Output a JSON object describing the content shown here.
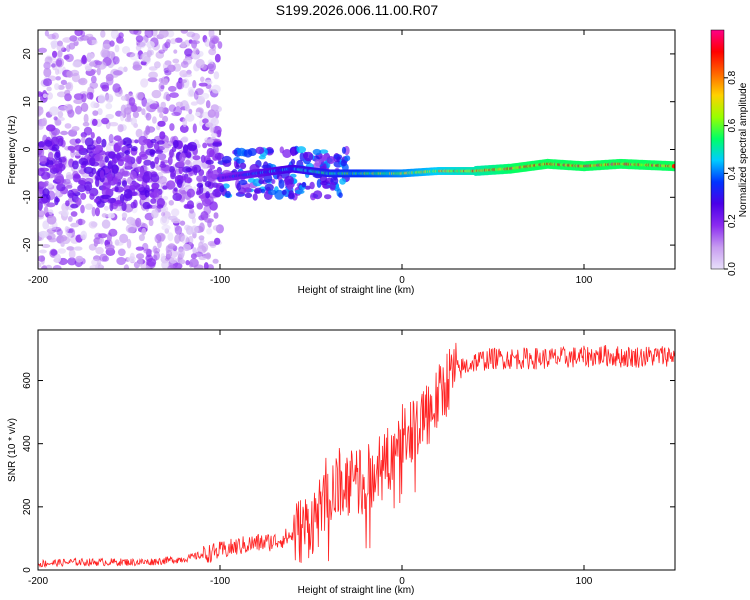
{
  "title": "S199.2026.006.11.00.R07",
  "chart_data": [
    {
      "type": "heatmap",
      "name": "spectrogram",
      "xlabel": "Height of straight line (km)",
      "ylabel": "Frequency (Hz)",
      "xlim": [
        -200,
        150
      ],
      "ylim": [
        -25,
        25
      ],
      "xticks": [
        -200,
        -100,
        0,
        100
      ],
      "yticks": [
        -20,
        -10,
        0,
        10,
        20
      ],
      "colorbar": {
        "label": "Normalized spectral amplitude",
        "range": [
          0,
          1
        ],
        "ticks": [
          0.0,
          0.2,
          0.4,
          0.6,
          0.8
        ],
        "stops": [
          "#e8e0fa",
          "#c79cf0",
          "#8b2cf0",
          "#4b00e8",
          "#0033ff",
          "#00ccff",
          "#00ff66",
          "#99ff00",
          "#ffd200",
          "#ff6600",
          "#ff0000",
          "#ff0088"
        ]
      },
      "carrier_frequency_hz": [
        [
          -100,
          -6
        ],
        [
          -80,
          -5
        ],
        [
          -60,
          -4
        ],
        [
          -40,
          -5
        ],
        [
          -20,
          -5
        ],
        [
          0,
          -5
        ],
        [
          20,
          -4.5
        ],
        [
          40,
          -4.5
        ],
        [
          60,
          -4
        ],
        [
          80,
          -3
        ],
        [
          100,
          -3.5
        ],
        [
          120,
          -3
        ],
        [
          150,
          -3.5
        ]
      ]
    },
    {
      "type": "line",
      "name": "snr",
      "xlabel": "Height of straight line (km)",
      "ylabel": "SNR (10 * v/v)",
      "xlim": [
        -200,
        150
      ],
      "ylim": [
        0,
        760
      ],
      "xticks": [
        -200,
        -100,
        0,
        100
      ],
      "yticks": [
        0,
        200,
        400,
        600
      ],
      "color": "#ff2222",
      "x": [
        -200,
        -180,
        -160,
        -140,
        -120,
        -100,
        -90,
        -80,
        -70,
        -60,
        -50,
        -40,
        -35,
        -30,
        -25,
        -20,
        -15,
        -10,
        -5,
        0,
        5,
        10,
        15,
        20,
        25,
        30,
        40,
        50,
        60,
        80,
        100,
        110,
        120,
        130,
        150
      ],
      "y": [
        20,
        25,
        25,
        25,
        35,
        60,
        75,
        85,
        90,
        110,
        150,
        220,
        260,
        280,
        270,
        290,
        300,
        330,
        370,
        420,
        450,
        480,
        500,
        540,
        600,
        630,
        660,
        670,
        670,
        670,
        675,
        680,
        675,
        675,
        680
      ]
    }
  ]
}
